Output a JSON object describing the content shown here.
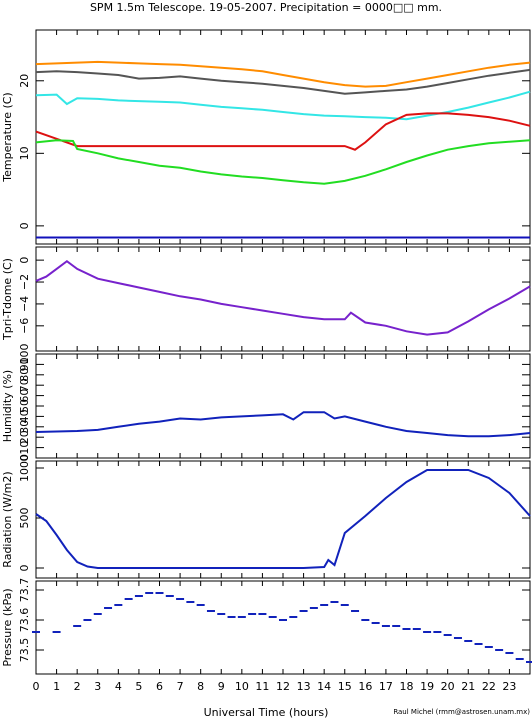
{
  "title": "SPM 1.5m Telescope. 19-05-2007. Precipitation = 0000□□ mm.",
  "xlabel": "Universal Time (hours)",
  "credit": "Raul Michel (rmm@astrosen.unam.mx)",
  "chart_data": [
    {
      "type": "line",
      "ylabel": "Temperature (C)",
      "yticks": [
        "0",
        "10",
        "20"
      ],
      "ylim": [
        -2.5,
        27
      ],
      "xlim": [
        0,
        24
      ],
      "series": [
        {
          "color": "#ff8c00",
          "x": [
            0,
            1,
            2,
            3,
            4,
            5,
            6,
            7,
            8,
            9,
            10,
            11,
            12,
            13,
            14,
            15,
            16,
            17,
            18,
            19,
            20,
            21,
            22,
            23,
            24
          ],
          "values": [
            22.3,
            22.4,
            22.5,
            22.6,
            22.5,
            22.4,
            22.3,
            22.2,
            22,
            21.8,
            21.6,
            21.3,
            20.8,
            20.3,
            19.8,
            19.4,
            19.2,
            19.3,
            19.8,
            20.3,
            20.8,
            21.3,
            21.8,
            22.2,
            22.5
          ]
        },
        {
          "color": "#555555",
          "x": [
            0,
            1,
            2,
            3,
            4,
            5,
            6,
            7,
            8,
            9,
            10,
            11,
            12,
            13,
            14,
            15,
            16,
            17,
            18,
            19,
            20,
            21,
            22,
            23,
            24
          ],
          "values": [
            21.2,
            21.3,
            21.2,
            21,
            20.8,
            20.3,
            20.4,
            20.6,
            20.3,
            20,
            19.8,
            19.6,
            19.3,
            19,
            18.6,
            18.2,
            18.4,
            18.6,
            18.8,
            19.2,
            19.7,
            20.2,
            20.7,
            21.1,
            21.5
          ]
        },
        {
          "color": "#33e6e6",
          "x": [
            0,
            1,
            1.5,
            2,
            3,
            4,
            5,
            6,
            7,
            8,
            9,
            10,
            11,
            12,
            13,
            14,
            15,
            16,
            17,
            18,
            19,
            20,
            21,
            22,
            23,
            24
          ],
          "values": [
            18,
            18.1,
            16.8,
            17.6,
            17.5,
            17.3,
            17.2,
            17.1,
            17,
            16.7,
            16.4,
            16.2,
            16,
            15.7,
            15.4,
            15.2,
            15.1,
            15,
            14.9,
            14.7,
            15.2,
            15.7,
            16.3,
            17,
            17.7,
            18.5
          ]
        },
        {
          "color": "#dd1111",
          "x": [
            0,
            1,
            2,
            3,
            4,
            5,
            6,
            7,
            8,
            9,
            10,
            11,
            12,
            13,
            14,
            15,
            15.5,
            16,
            17,
            18,
            19,
            20,
            21,
            22,
            23,
            24
          ],
          "values": [
            13,
            12,
            11,
            11,
            11,
            11,
            11,
            11,
            11,
            11,
            11,
            11,
            11,
            11,
            11,
            11,
            10.5,
            11.5,
            14,
            15.3,
            15.5,
            15.5,
            15.3,
            15,
            14.5,
            13.8
          ]
        },
        {
          "color": "#22dd22",
          "x": [
            0,
            1,
            1.8,
            2,
            3,
            4,
            5,
            6,
            7,
            8,
            9,
            10,
            11,
            12,
            13,
            14,
            15,
            16,
            17,
            18,
            19,
            20,
            21,
            22,
            23,
            24
          ],
          "values": [
            11.5,
            11.8,
            11.7,
            10.6,
            10,
            9.3,
            8.8,
            8.3,
            8,
            7.5,
            7.1,
            6.8,
            6.6,
            6.3,
            6,
            5.8,
            6.2,
            6.9,
            7.8,
            8.8,
            9.7,
            10.5,
            11,
            11.4,
            11.6,
            11.8
          ]
        },
        {
          "color": "#1111bb",
          "x": [
            0,
            24
          ],
          "values": [
            -1.6,
            -1.6
          ]
        }
      ]
    },
    {
      "type": "line",
      "ylabel": "Tpri-Tdome (C)",
      "yticks": [
        "−6",
        "−4",
        "−2",
        "0"
      ],
      "ylim": [
        -8.3,
        1.2
      ],
      "xlim": [
        0,
        24
      ],
      "series": [
        {
          "color": "#7722cc",
          "x": [
            0,
            0.5,
            1,
            1.5,
            2,
            3,
            4,
            5,
            6,
            7,
            8,
            9,
            10,
            11,
            12,
            13,
            14,
            15,
            15.3,
            16,
            17,
            18,
            19,
            20,
            21,
            22,
            23,
            24
          ],
          "values": [
            -1.9,
            -1.5,
            -0.8,
            -0.1,
            -0.8,
            -1.7,
            -2.1,
            -2.5,
            -2.9,
            -3.3,
            -3.6,
            -4,
            -4.3,
            -4.6,
            -4.9,
            -5.2,
            -5.4,
            -5.4,
            -4.8,
            -5.7,
            -6,
            -6.5,
            -6.8,
            -6.6,
            -5.6,
            -4.5,
            -3.5,
            -2.4
          ]
        }
      ]
    },
    {
      "type": "line",
      "ylabel": "Humidity (%)",
      "yticks": [
        "0",
        "10",
        "20",
        "30",
        "40",
        "50",
        "60",
        "70",
        "80",
        "90",
        "100"
      ],
      "ylim": [
        0,
        100
      ],
      "xlim": [
        0,
        24
      ],
      "series": [
        {
          "color": "#1122bb",
          "x": [
            0,
            1,
            2,
            3,
            4,
            5,
            6,
            7,
            8,
            9,
            10,
            11,
            12,
            12.5,
            13,
            14,
            14.5,
            15,
            16,
            17,
            18,
            19,
            20,
            21,
            22,
            23,
            24
          ],
          "values": [
            25,
            25.5,
            26,
            27,
            30,
            33,
            35,
            38,
            37,
            39,
            40,
            41,
            42,
            37,
            44,
            44,
            38,
            40,
            35,
            30,
            26,
            24,
            22,
            21,
            21,
            22,
            24
          ]
        }
      ]
    },
    {
      "type": "line",
      "ylabel": "Radiation (W/m2)",
      "yticks": [
        "0",
        "500",
        "1000"
      ],
      "ylim": [
        -100,
        1070
      ],
      "xlim": [
        0,
        24
      ],
      "series": [
        {
          "color": "#1122bb",
          "x": [
            0,
            0.5,
            1,
            1.5,
            2,
            2.5,
            3,
            5,
            10,
            13,
            14,
            14.2,
            14.5,
            15,
            16,
            17,
            18,
            19,
            20,
            21,
            22,
            23,
            24
          ],
          "values": [
            540,
            470,
            330,
            180,
            60,
            15,
            0,
            0,
            0,
            0,
            10,
            80,
            30,
            350,
            520,
            700,
            860,
            980,
            980,
            980,
            900,
            750,
            520
          ]
        }
      ]
    },
    {
      "type": "scatter",
      "ylabel": "Pressure (kPa)",
      "yticks": [
        "73.5",
        "73.6",
        "73.7"
      ],
      "ylim": [
        73.42,
        73.73
      ],
      "xlim": [
        0,
        24
      ],
      "series": [
        {
          "color": "#1122bb",
          "x": [
            0,
            1,
            2,
            2.5,
            3,
            3.5,
            4,
            4.5,
            5,
            5.5,
            6,
            6.5,
            7,
            7.5,
            8,
            8.5,
            9,
            9.5,
            10,
            10.5,
            11,
            11.5,
            12,
            12.5,
            13,
            13.5,
            14,
            14.5,
            15,
            15.5,
            16,
            16.5,
            17,
            17.5,
            18,
            18.5,
            19,
            19.5,
            20,
            20.5,
            21,
            21.5,
            22,
            22.5,
            23,
            23.5,
            24
          ],
          "values": [
            73.56,
            73.56,
            73.58,
            73.6,
            73.62,
            73.64,
            73.65,
            73.67,
            73.68,
            73.69,
            73.69,
            73.68,
            73.67,
            73.66,
            73.65,
            73.63,
            73.62,
            73.61,
            73.61,
            73.62,
            73.62,
            73.61,
            73.6,
            73.61,
            73.63,
            73.64,
            73.65,
            73.66,
            73.65,
            73.63,
            73.6,
            73.59,
            73.58,
            73.58,
            73.57,
            73.57,
            73.56,
            73.56,
            73.55,
            73.54,
            73.53,
            73.52,
            73.51,
            73.5,
            73.49,
            73.47,
            73.46
          ]
        }
      ]
    }
  ]
}
